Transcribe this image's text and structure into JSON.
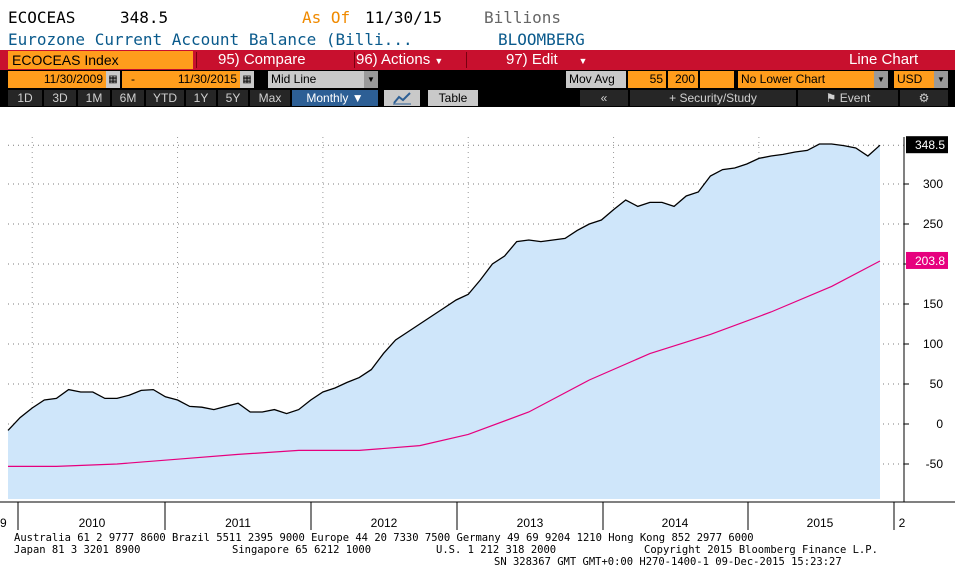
{
  "header": {
    "ticker": "ECOCEAS",
    "last_value": "348.5",
    "as_of_label": "As Of",
    "as_of_date": "11/30/15",
    "units": "Billions",
    "description": "Eurozone Current Account Balance (Billi...",
    "source": "BLOOMBERG"
  },
  "menu": {
    "security": "ECOCEAS Index",
    "compare": "95) Compare",
    "actions": "96) Actions",
    "edit": "97) Edit",
    "chart_type": "Line Chart"
  },
  "controls": {
    "start_date": "11/30/2009",
    "dash": "-",
    "end_date": "11/30/2015",
    "mid_line": "Mid Line",
    "mov_avg_label": "Mov Avg",
    "mov_avg_1": "55",
    "mov_avg_2": "200",
    "lower_chart": "No Lower Chart",
    "currency": "USD"
  },
  "toolbar": {
    "ranges": [
      "1D",
      "3D",
      "1M",
      "6M",
      "YTD",
      "1Y",
      "5Y",
      "Max"
    ],
    "frequency": "Monthly ▼",
    "table": "Table",
    "back": "«",
    "security_study": "Security/Study",
    "event": "Event"
  },
  "colors": {
    "area_fill": "#cfe6fa",
    "price_line": "#000000",
    "moving_average": "#e6007e",
    "last_badge": "#000000",
    "ma_badge": "#e6007e"
  },
  "chart_data": {
    "type": "area",
    "ylim": [
      -100,
      360
    ],
    "yticks": [
      -50,
      0,
      50,
      100,
      150,
      200,
      250,
      300
    ],
    "x_labels": [
      "9",
      "2010",
      "2011",
      "2012",
      "2013",
      "2014",
      "2015",
      "2"
    ],
    "grid": true,
    "y_axis_side": "right",
    "last_value_label": "348.5",
    "ma_value_label": "203.8",
    "series": [
      {
        "name": "ECOCEAS Index",
        "style": "area",
        "x": [
          "2009-11",
          "2009-12",
          "2010-01",
          "2010-02",
          "2010-03",
          "2010-04",
          "2010-05",
          "2010-06",
          "2010-07",
          "2010-08",
          "2010-09",
          "2010-10",
          "2010-11",
          "2010-12",
          "2011-01",
          "2011-02",
          "2011-03",
          "2011-04",
          "2011-05",
          "2011-06",
          "2011-07",
          "2011-08",
          "2011-09",
          "2011-10",
          "2011-11",
          "2011-12",
          "2012-01",
          "2012-02",
          "2012-03",
          "2012-04",
          "2012-05",
          "2012-06",
          "2012-07",
          "2012-08",
          "2012-09",
          "2012-10",
          "2012-11",
          "2012-12",
          "2013-01",
          "2013-02",
          "2013-03",
          "2013-04",
          "2013-05",
          "2013-06",
          "2013-07",
          "2013-08",
          "2013-09",
          "2013-10",
          "2013-11",
          "2013-12",
          "2014-01",
          "2014-02",
          "2014-03",
          "2014-04",
          "2014-05",
          "2014-06",
          "2014-07",
          "2014-08",
          "2014-09",
          "2014-10",
          "2014-11",
          "2014-12",
          "2015-01",
          "2015-02",
          "2015-03",
          "2015-04",
          "2015-05",
          "2015-06",
          "2015-07",
          "2015-08",
          "2015-09",
          "2015-10",
          "2015-11"
        ],
        "values": [
          -8,
          8,
          20,
          30,
          32,
          43,
          40,
          40,
          32,
          32,
          36,
          42,
          43,
          34,
          30,
          22,
          21,
          18,
          22,
          26,
          15,
          15,
          18,
          13,
          18,
          30,
          40,
          45,
          52,
          58,
          68,
          88,
          105,
          115,
          125,
          135,
          145,
          155,
          162,
          180,
          200,
          210,
          228,
          230,
          228,
          230,
          232,
          242,
          250,
          255,
          268,
          280,
          272,
          277,
          277,
          272,
          285,
          290,
          310,
          318,
          320,
          325,
          332,
          335,
          337,
          340,
          342,
          350,
          350,
          348,
          345,
          335,
          348.5
        ]
      },
      {
        "name": "Mov Avg 55",
        "style": "line",
        "x": [
          "2009-11",
          "2010-03",
          "2010-08",
          "2011-01",
          "2011-06",
          "2011-11",
          "2012-04",
          "2012-09",
          "2013-01",
          "2013-06",
          "2013-11",
          "2014-04",
          "2014-09",
          "2015-02",
          "2015-07",
          "2015-11"
        ],
        "values": [
          -53,
          -53,
          -50,
          -44,
          -38,
          -33,
          -33,
          -27,
          -13,
          15,
          55,
          88,
          112,
          140,
          172,
          203.8
        ]
      }
    ]
  },
  "footer": {
    "line1": "Australia 61 2 9777 8600 Brazil 5511 2395 9000 Europe 44 20 7330 7500 Germany 49 69 9204 1210 Hong Kong 852 2977 6000",
    "line2_left": "Japan 81 3 3201 8900",
    "line2_mid": "Singapore 65 6212 1000",
    "line2_us": "U.S. 1 212 318 2000",
    "line2_right": "Copyright 2015 Bloomberg Finance L.P.",
    "line3": "SN 328367 GMT   GMT+0:00 H270-1400-1 09-Dec-2015 15:23:27"
  }
}
